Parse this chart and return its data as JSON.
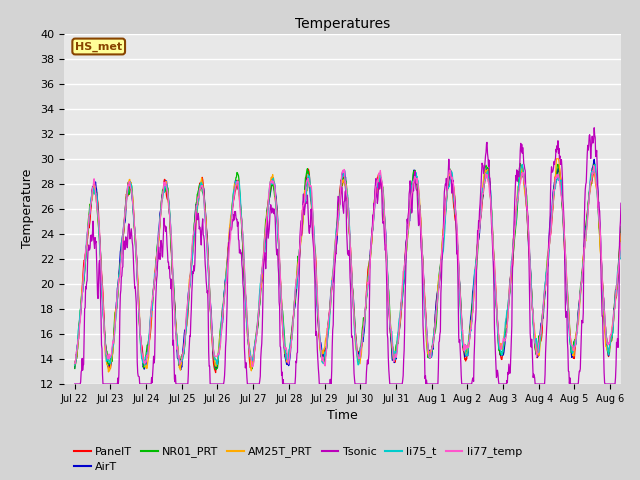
{
  "title": "Temperatures",
  "xlabel": "Time",
  "ylabel": "Temperature",
  "ylim": [
    12,
    40
  ],
  "yticks": [
    12,
    14,
    16,
    18,
    20,
    22,
    24,
    26,
    28,
    30,
    32,
    34,
    36,
    38,
    40
  ],
  "fig_bg_color": "#d4d4d4",
  "plot_bg_color": "#e8e8e8",
  "series_colors": {
    "PanelT": "#ff0000",
    "AirT": "#0000cc",
    "NR01_PRT": "#00bb00",
    "AM25T_PRT": "#ffaa00",
    "Tsonic": "#bb00bb",
    "li75_t": "#00cccc",
    "li77_temp": "#ff55cc"
  },
  "annotation_text": "HS_met",
  "annotation_color": "#884400",
  "annotation_bg": "#ffff99",
  "n_points": 1152,
  "xtick_labels": [
    "Jul 22",
    "Jul 23",
    "Jul 24",
    "Jul 25",
    "Jul 26",
    "Jul 27",
    "Jul 28",
    "Jul 29",
    "Jul 30",
    "Jul 31",
    "Aug 1",
    "Aug 2",
    "Aug 3",
    "Aug 4",
    "Aug 5",
    "Aug 6"
  ]
}
